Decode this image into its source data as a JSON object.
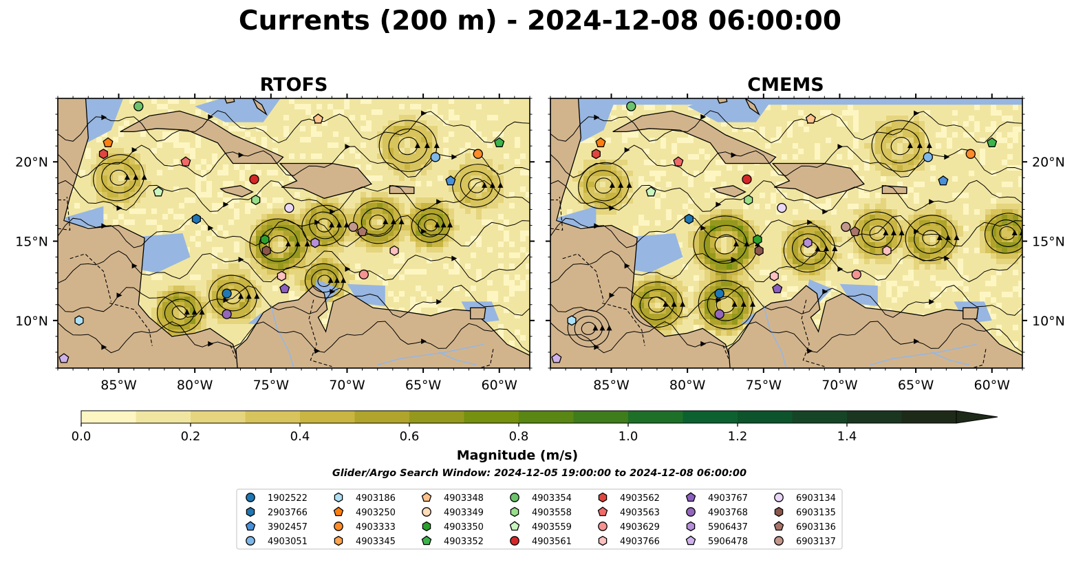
{
  "figure": {
    "title": "Currents (200 m) - 2024-12-08 06:00:00",
    "search_window": "Glider/Argo Search Window: 2024-12-05 19:00:00 to 2024-12-08 06:00:00"
  },
  "colors": {
    "land": "#d2b48c",
    "ocean_masked": "#97b6e1",
    "coast": "#000000",
    "river": "#97b6e1",
    "colormap": [
      "#fdf6c3",
      "#f1e6a1",
      "#e5d57e",
      "#d8c45c",
      "#c9b541",
      "#b0a42c",
      "#94991d",
      "#76900f",
      "#5a8613",
      "#3f7c1b",
      "#1e6f28",
      "#0d6130",
      "#0d532b",
      "#154526",
      "#1a3620",
      "#1d2a18"
    ]
  },
  "chart_data": [
    {
      "type": "map",
      "panel_title": "RTOFS",
      "lon_range": [
        -89,
        -58
      ],
      "lat_range": [
        7,
        24
      ],
      "xticks": [
        -85,
        -80,
        -75,
        -70,
        -65,
        -60
      ],
      "xtick_labels": [
        "85°W",
        "80°W",
        "75°W",
        "70°W",
        "65°W",
        "60°W"
      ],
      "yticks": [
        10,
        15,
        20
      ],
      "ytick_labels": [
        "10°N",
        "15°N",
        "20°N"
      ],
      "ytick_side": "left",
      "eddies": [
        {
          "lon": -74.5,
          "lat": 14.8,
          "r": 1.8,
          "mag": 0.55
        },
        {
          "lon": -71.5,
          "lat": 16.0,
          "r": 1.4,
          "mag": 0.45
        },
        {
          "lon": -68.0,
          "lat": 16.2,
          "r": 1.5,
          "mag": 0.5
        },
        {
          "lon": -64.5,
          "lat": 16.0,
          "r": 1.2,
          "mag": 0.55
        },
        {
          "lon": -77.5,
          "lat": 11.5,
          "r": 1.5,
          "mag": 0.4
        },
        {
          "lon": -81.0,
          "lat": 10.5,
          "r": 1.4,
          "mag": 0.5
        },
        {
          "lon": -85.0,
          "lat": 19.0,
          "r": 1.6,
          "mag": 0.35
        },
        {
          "lon": -66.0,
          "lat": 21.0,
          "r": 1.8,
          "mag": 0.3
        },
        {
          "lon": -61.5,
          "lat": 18.5,
          "r": 1.5,
          "mag": 0.3
        },
        {
          "lon": -71.5,
          "lat": 12.5,
          "r": 1.2,
          "mag": 0.45
        }
      ],
      "floats": [
        {
          "id": "4903354",
          "lon": -83.7,
          "lat": 23.5
        },
        {
          "id": "4903250",
          "lon": -85.7,
          "lat": 21.2
        },
        {
          "id": "4903562",
          "lon": -86.0,
          "lat": 20.5
        },
        {
          "id": "4903563",
          "lon": -80.6,
          "lat": 20.0
        },
        {
          "id": "4903559",
          "lon": -82.4,
          "lat": 18.1
        },
        {
          "id": "4903561",
          "lon": -76.1,
          "lat": 18.9
        },
        {
          "id": "4903558",
          "lon": -76.0,
          "lat": 17.6
        },
        {
          "id": "4903348",
          "lon": -71.9,
          "lat": 22.7
        },
        {
          "id": "4903051",
          "lon": -64.2,
          "lat": 20.3
        },
        {
          "id": "4903333",
          "lon": -61.4,
          "lat": 20.5
        },
        {
          "id": "4903352",
          "lon": -60.0,
          "lat": 21.2
        },
        {
          "id": "3902457",
          "lon": -63.2,
          "lat": 18.8
        },
        {
          "id": "2903766",
          "lon": -79.9,
          "lat": 16.4
        },
        {
          "id": "4903350",
          "lon": -75.4,
          "lat": 15.1
        },
        {
          "id": "6903135",
          "lon": -75.3,
          "lat": 14.4
        },
        {
          "id": "6903134",
          "lon": -73.8,
          "lat": 17.1
        },
        {
          "id": "5906437",
          "lon": -72.1,
          "lat": 14.9
        },
        {
          "id": "6903137",
          "lon": -69.6,
          "lat": 15.9
        },
        {
          "id": "6903136",
          "lon": -69.0,
          "lat": 15.6
        },
        {
          "id": "4903766",
          "lon": -66.9,
          "lat": 14.4
        },
        {
          "id": "4903766b",
          "lon": -74.3,
          "lat": 12.8
        },
        {
          "id": "4903767",
          "lon": -74.1,
          "lat": 12.0
        },
        {
          "id": "4903629",
          "lon": -68.9,
          "lat": 12.9
        },
        {
          "id": "1902522",
          "lon": -77.9,
          "lat": 11.7
        },
        {
          "id": "4903768",
          "lon": -77.9,
          "lat": 10.4
        },
        {
          "id": "4903186",
          "lon": -87.6,
          "lat": 10.0
        },
        {
          "id": "5906478",
          "lon": -88.6,
          "lat": 7.6
        }
      ]
    },
    {
      "type": "map",
      "panel_title": "CMEMS",
      "lon_range": [
        -89,
        -58
      ],
      "lat_range": [
        7,
        24
      ],
      "xticks": [
        -85,
        -80,
        -75,
        -70,
        -65,
        -60
      ],
      "xtick_labels": [
        "85°W",
        "80°W",
        "75°W",
        "70°W",
        "65°W",
        "60°W"
      ],
      "yticks": [
        10,
        15,
        20
      ],
      "ytick_labels": [
        "10°N",
        "15°N",
        "20°N"
      ],
      "ytick_side": "right",
      "data_lat_max": 23.6,
      "eddies": [
        {
          "lon": -77.5,
          "lat": 14.8,
          "r": 2.0,
          "mag": 0.6
        },
        {
          "lon": -72.0,
          "lat": 14.5,
          "r": 1.6,
          "mag": 0.45
        },
        {
          "lon": -67.5,
          "lat": 15.5,
          "r": 1.5,
          "mag": 0.4
        },
        {
          "lon": -64.0,
          "lat": 15.2,
          "r": 1.6,
          "mag": 0.45
        },
        {
          "lon": -77.5,
          "lat": 11.0,
          "r": 1.7,
          "mag": 0.55
        },
        {
          "lon": -82.0,
          "lat": 11.0,
          "r": 1.6,
          "mag": 0.5
        },
        {
          "lon": -85.5,
          "lat": 18.5,
          "r": 1.6,
          "mag": 0.35
        },
        {
          "lon": -66.0,
          "lat": 21.0,
          "r": 1.8,
          "mag": 0.3
        },
        {
          "lon": -59.0,
          "lat": 15.5,
          "r": 1.4,
          "mag": 0.55
        },
        {
          "lon": -86.5,
          "lat": 9.5,
          "r": 1.3,
          "mag": 0.45
        }
      ],
      "floats": [
        {
          "id": "4903354",
          "lon": -83.7,
          "lat": 23.5
        },
        {
          "id": "4903250",
          "lon": -85.7,
          "lat": 21.2
        },
        {
          "id": "4903562",
          "lon": -86.0,
          "lat": 20.5
        },
        {
          "id": "4903563",
          "lon": -80.6,
          "lat": 20.0
        },
        {
          "id": "4903559",
          "lon": -82.4,
          "lat": 18.1
        },
        {
          "id": "4903561",
          "lon": -76.1,
          "lat": 18.9
        },
        {
          "id": "4903558",
          "lon": -76.0,
          "lat": 17.6
        },
        {
          "id": "4903348",
          "lon": -71.9,
          "lat": 22.7
        },
        {
          "id": "4903051",
          "lon": -64.2,
          "lat": 20.3
        },
        {
          "id": "4903333",
          "lon": -61.4,
          "lat": 20.5
        },
        {
          "id": "4903352",
          "lon": -60.0,
          "lat": 21.2
        },
        {
          "id": "3902457",
          "lon": -63.2,
          "lat": 18.8
        },
        {
          "id": "2903766",
          "lon": -79.9,
          "lat": 16.4
        },
        {
          "id": "4903350",
          "lon": -75.4,
          "lat": 15.1
        },
        {
          "id": "6903135",
          "lon": -75.3,
          "lat": 14.4
        },
        {
          "id": "6903134",
          "lon": -73.8,
          "lat": 17.1
        },
        {
          "id": "5906437",
          "lon": -72.1,
          "lat": 14.9
        },
        {
          "id": "6903137",
          "lon": -69.6,
          "lat": 15.9
        },
        {
          "id": "6903136",
          "lon": -69.0,
          "lat": 15.6
        },
        {
          "id": "4903766",
          "lon": -66.9,
          "lat": 14.4
        },
        {
          "id": "4903766b",
          "lon": -74.3,
          "lat": 12.8
        },
        {
          "id": "4903767",
          "lon": -74.1,
          "lat": 12.0
        },
        {
          "id": "4903629",
          "lon": -68.9,
          "lat": 12.9
        },
        {
          "id": "1902522",
          "lon": -77.9,
          "lat": 11.7
        },
        {
          "id": "4903768",
          "lon": -77.9,
          "lat": 10.4
        },
        {
          "id": "4903186",
          "lon": -87.6,
          "lat": 10.0
        },
        {
          "id": "5906478",
          "lon": -88.6,
          "lat": 7.6
        }
      ]
    },
    {
      "type": "colorbar",
      "label": "Magnitude (m/s)",
      "range": [
        0.0,
        1.6
      ],
      "extend": "max",
      "levels": [
        0.0,
        0.1,
        0.2,
        0.3,
        0.4,
        0.5,
        0.6,
        0.7,
        0.8,
        0.9,
        1.0,
        1.1,
        1.2,
        1.3,
        1.4,
        1.5,
        1.6
      ],
      "ticks": [
        0.0,
        0.2,
        0.4,
        0.6,
        0.8,
        1.0,
        1.2,
        1.4
      ],
      "tick_labels": [
        "0.0",
        "0.2",
        "0.4",
        "0.6",
        "0.8",
        "1.0",
        "1.2",
        "1.4"
      ]
    }
  ],
  "legend": {
    "columns": 7,
    "entries": [
      {
        "id": "1902522",
        "marker": "circle",
        "color": "#1f77b4"
      },
      {
        "id": "2903766",
        "marker": "hexagon",
        "color": "#1f77b4"
      },
      {
        "id": "3902457",
        "marker": "pentagon",
        "color": "#4a90d9"
      },
      {
        "id": "4903051",
        "marker": "circle",
        "color": "#7fb8e8"
      },
      {
        "id": "4903186",
        "marker": "hexagon",
        "color": "#aee0f5"
      },
      {
        "id": "4903250",
        "marker": "pentagon",
        "color": "#ff7f0e"
      },
      {
        "id": "4903333",
        "marker": "circle",
        "color": "#ff8c29"
      },
      {
        "id": "4903345",
        "marker": "hexagon",
        "color": "#ffa54f"
      },
      {
        "id": "4903348",
        "marker": "pentagon",
        "color": "#ffc28a"
      },
      {
        "id": "4903349",
        "marker": "circle",
        "color": "#ffdcb8"
      },
      {
        "id": "4903350",
        "marker": "hexagon",
        "color": "#2ca02c"
      },
      {
        "id": "4903352",
        "marker": "pentagon",
        "color": "#3cb44b"
      },
      {
        "id": "4903354",
        "marker": "circle",
        "color": "#6cc36c"
      },
      {
        "id": "4903558",
        "marker": "hexagon",
        "color": "#98df8a"
      },
      {
        "id": "4903559",
        "marker": "pentagon",
        "color": "#c9f5c0"
      },
      {
        "id": "4903561",
        "marker": "circle",
        "color": "#d62728"
      },
      {
        "id": "4903562",
        "marker": "hexagon",
        "color": "#e0463f"
      },
      {
        "id": "4903563",
        "marker": "pentagon",
        "color": "#f06a6a"
      },
      {
        "id": "4903629",
        "marker": "circle",
        "color": "#f59393"
      },
      {
        "id": "4903766",
        "marker": "hexagon",
        "color": "#ffc0c0"
      },
      {
        "id": "4903767",
        "marker": "pentagon",
        "color": "#8c5fbf"
      },
      {
        "id": "4903768",
        "marker": "circle",
        "color": "#9467bd"
      },
      {
        "id": "5906437",
        "marker": "hexagon",
        "color": "#b58fd8"
      },
      {
        "id": "5906478",
        "marker": "pentagon",
        "color": "#cfb2ec"
      },
      {
        "id": "6903134",
        "marker": "circle",
        "color": "#ead6f7"
      },
      {
        "id": "6903135",
        "marker": "hexagon",
        "color": "#8c564b"
      },
      {
        "id": "6903136",
        "marker": "pentagon",
        "color": "#a9746a"
      },
      {
        "id": "6903137",
        "marker": "circle",
        "color": "#c4978c"
      }
    ]
  }
}
